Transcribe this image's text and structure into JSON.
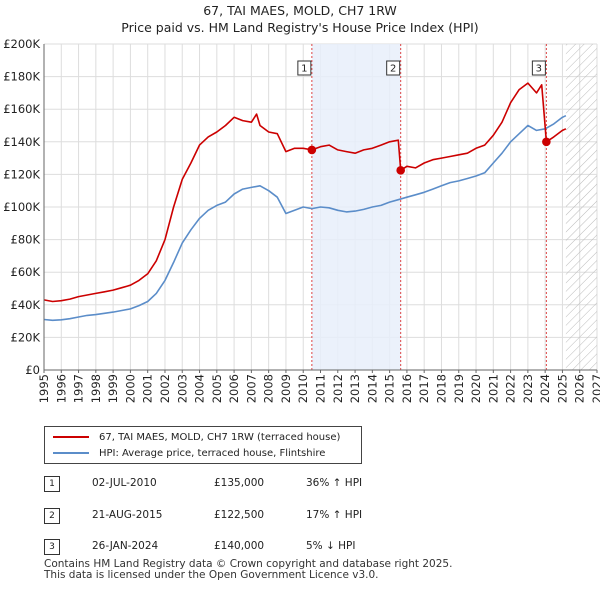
{
  "title_line1": "67, TAI MAES, MOLD, CH7 1RW",
  "title_line2": "Price paid vs. HM Land Registry's House Price Index (HPI)",
  "chart_data": {
    "type": "line",
    "title": "67, TAI MAES, MOLD, CH7 1RW — Price paid vs. HM Land Registry's House Price Index (HPI)",
    "xlabel": "",
    "ylabel": "",
    "xlim": [
      1995,
      2027
    ],
    "ylim": [
      0,
      200000
    ],
    "x_ticks": [
      1995,
      1996,
      1997,
      1998,
      1999,
      2000,
      2001,
      2002,
      2003,
      2004,
      2005,
      2006,
      2007,
      2008,
      2009,
      2010,
      2011,
      2012,
      2013,
      2014,
      2015,
      2016,
      2017,
      2018,
      2019,
      2020,
      2021,
      2022,
      2023,
      2024,
      2025,
      2026,
      2027
    ],
    "y_ticks": [
      0,
      20000,
      40000,
      60000,
      80000,
      100000,
      120000,
      140000,
      160000,
      180000,
      200000
    ],
    "y_tick_labels": [
      "£0",
      "£20K",
      "£40K",
      "£60K",
      "£80K",
      "£100K",
      "£120K",
      "£140K",
      "£160K",
      "£180K",
      "£200K"
    ],
    "shaded_region": {
      "from": 2010.5,
      "to": 2015.64,
      "color": "#e8eefa"
    },
    "hatched_region": {
      "from": 2025.2,
      "to": 2027
    },
    "series": [
      {
        "name": "67, TAI MAES, MOLD, CH7 1RW (terraced house)",
        "color": "#cc0000",
        "x": [
          1995,
          1995.5,
          1996,
          1996.5,
          1997,
          1997.5,
          1998,
          1998.5,
          1999,
          1999.5,
          2000,
          2000.5,
          2001,
          2001.5,
          2002,
          2002.5,
          2003,
          2003.5,
          2004,
          2004.5,
          2005,
          2005.5,
          2006,
          2006.5,
          2007,
          2007.3,
          2007.5,
          2008,
          2008.5,
          2009,
          2009.5,
          2010,
          2010.5,
          2011,
          2011.5,
          2012,
          2012.5,
          2013,
          2013.5,
          2014,
          2014.5,
          2015,
          2015.5,
          2015.64,
          2016,
          2016.5,
          2017,
          2017.5,
          2018,
          2018.5,
          2019,
          2019.5,
          2020,
          2020.5,
          2021,
          2021.5,
          2022,
          2022.5,
          2023,
          2023.5,
          2023.8,
          2024.07,
          2024.5,
          2025,
          2025.2
        ],
        "values": [
          43000,
          42000,
          42500,
          43500,
          45000,
          46000,
          47000,
          48000,
          49000,
          50500,
          52000,
          55000,
          59000,
          67000,
          80000,
          100000,
          117000,
          127000,
          138000,
          143000,
          146000,
          150000,
          155000,
          153000,
          152000,
          157000,
          150000,
          146000,
          145000,
          134000,
          136000,
          136000,
          135000,
          137000,
          138000,
          135000,
          134000,
          133000,
          135000,
          136000,
          138000,
          140000,
          141000,
          122500,
          125000,
          124000,
          127000,
          129000,
          130000,
          131000,
          132000,
          133000,
          136000,
          138000,
          144000,
          152000,
          164000,
          172000,
          176000,
          170000,
          175000,
          140000,
          143000,
          147000,
          148000
        ]
      },
      {
        "name": "HPI: Average price, terraced house, Flintshire",
        "color": "#5b8dc9",
        "x": [
          1995,
          1995.5,
          1996,
          1996.5,
          1997,
          1997.5,
          1998,
          1998.5,
          1999,
          1999.5,
          2000,
          2000.5,
          2001,
          2001.5,
          2002,
          2002.5,
          2003,
          2003.5,
          2004,
          2004.5,
          2005,
          2005.5,
          2006,
          2006.5,
          2007,
          2007.5,
          2008,
          2008.5,
          2009,
          2009.5,
          2010,
          2010.5,
          2011,
          2011.5,
          2012,
          2012.5,
          2013,
          2013.5,
          2014,
          2014.5,
          2015,
          2015.5,
          2016,
          2016.5,
          2017,
          2017.5,
          2018,
          2018.5,
          2019,
          2019.5,
          2020,
          2020.5,
          2021,
          2021.5,
          2022,
          2022.5,
          2023,
          2023.5,
          2024,
          2024.5,
          2025,
          2025.2
        ],
        "values": [
          31000,
          30500,
          30800,
          31500,
          32500,
          33500,
          34000,
          34800,
          35500,
          36500,
          37500,
          39500,
          42000,
          47000,
          55000,
          66000,
          78000,
          86000,
          93000,
          98000,
          101000,
          103000,
          108000,
          111000,
          112000,
          113000,
          110000,
          106000,
          96000,
          98000,
          100000,
          99000,
          100000,
          99500,
          98000,
          97000,
          97500,
          98500,
          100000,
          101000,
          103000,
          104500,
          106000,
          107500,
          109000,
          111000,
          113000,
          115000,
          116000,
          117500,
          119000,
          121000,
          127000,
          133000,
          140000,
          145000,
          150000,
          147000,
          148000,
          151000,
          155000,
          156000
        ]
      }
    ],
    "sales": [
      {
        "num": "1",
        "x": 2010.5,
        "price": 135000
      },
      {
        "num": "2",
        "x": 2015.64,
        "price": 122500
      },
      {
        "num": "3",
        "x": 2024.07,
        "price": 140000
      }
    ]
  },
  "legend": {
    "entries": [
      {
        "label": "67, TAI MAES, MOLD, CH7 1RW (terraced house)",
        "color": "#cc0000"
      },
      {
        "label": "HPI: Average price, terraced house, Flintshire",
        "color": "#5b8dc9"
      }
    ]
  },
  "sales_table": [
    {
      "num": "1",
      "date": "02-JUL-2010",
      "price": "£135,000",
      "hpi": "36% ↑ HPI"
    },
    {
      "num": "2",
      "date": "21-AUG-2015",
      "price": "£122,500",
      "hpi": "17% ↑ HPI"
    },
    {
      "num": "3",
      "date": "26-JAN-2024",
      "price": "£140,000",
      "hpi": "5% ↓ HPI"
    }
  ],
  "footer_line1": "Contains HM Land Registry data © Crown copyright and database right 2025.",
  "footer_line2": "This data is licensed under the Open Government Licence v3.0."
}
